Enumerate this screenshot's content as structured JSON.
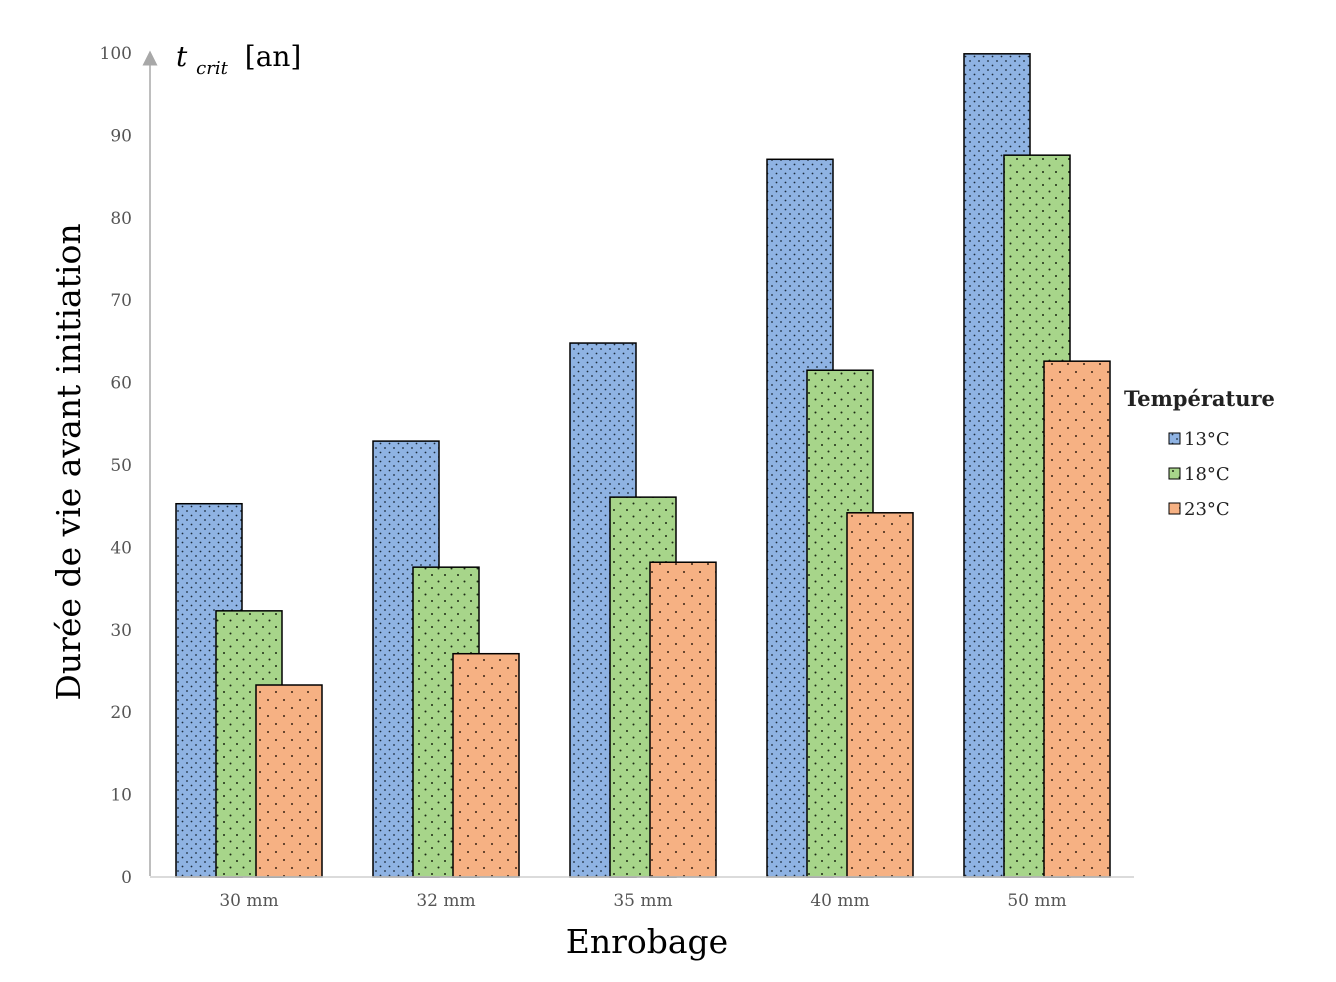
{
  "chart_data": {
    "type": "bar",
    "categories": [
      "30 mm",
      "32 mm",
      "35 mm",
      "40 mm",
      "50 mm"
    ],
    "series": [
      {
        "name": "13°C",
        "values": [
          45.3,
          52.9,
          64.8,
          87.1,
          99.9
        ],
        "color": "#8fb3e3"
      },
      {
        "name": "18°C",
        "values": [
          32.3,
          37.6,
          46.1,
          61.5,
          87.6
        ],
        "color": "#a7d58a"
      },
      {
        "name": "23°C",
        "values": [
          23.3,
          27.1,
          38.2,
          44.2,
          62.6
        ],
        "color": "#f6b183"
      }
    ],
    "xlabel": "Enrobage",
    "ylabel": "Durée de vie avant initiation",
    "ylim": [
      0,
      100
    ],
    "yticks": [
      0,
      10,
      20,
      30,
      40,
      50,
      60,
      70,
      80,
      90,
      100
    ],
    "unit_label": {
      "main": "t",
      "subscript": "crit",
      "unit": "[an]"
    },
    "legend": {
      "title": "Température",
      "position": "right"
    },
    "grid": false,
    "pattern": "dots"
  }
}
